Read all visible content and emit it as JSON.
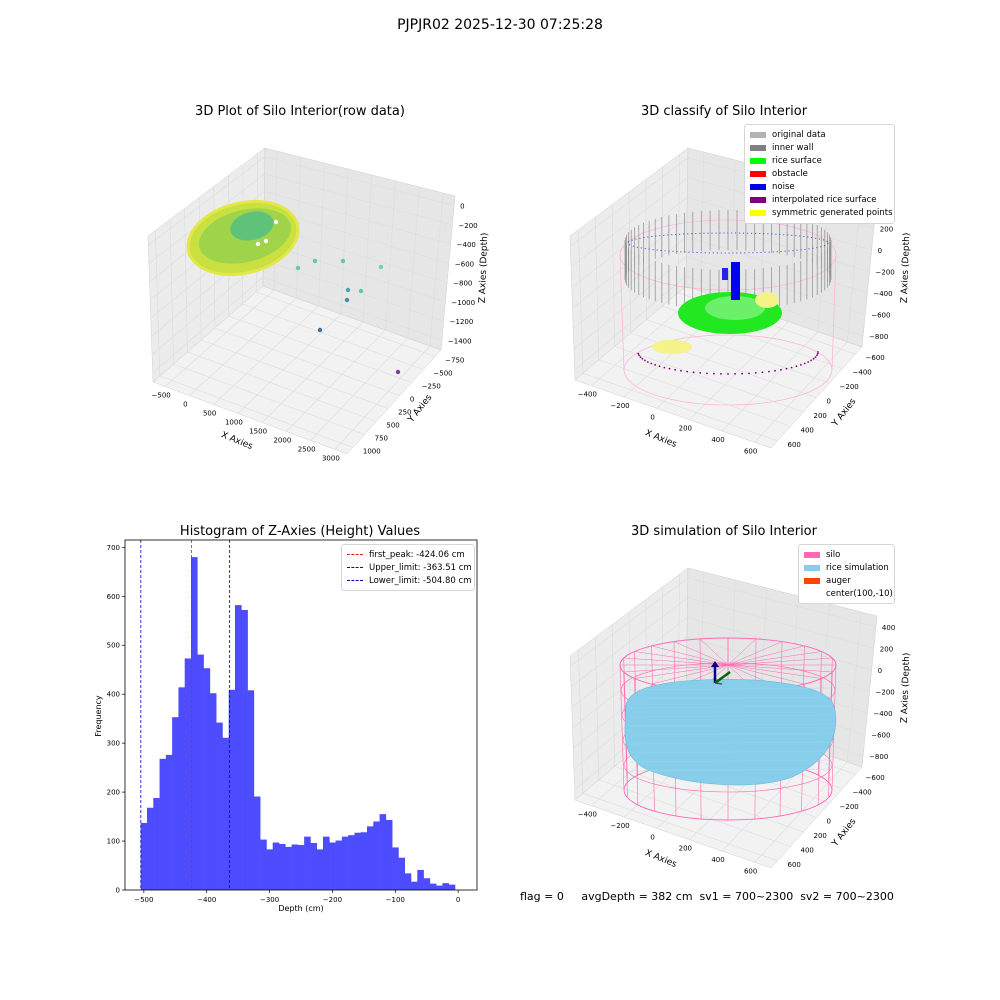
{
  "figure_title": "PJPJR02 2025-12-30 07:25:28",
  "colors": {
    "hist_bar": "#4d4dff",
    "first_peak": "#e41a1c",
    "limits": "#0000cc",
    "silo": "#ff69b4",
    "rice_simulation": "#87ceeb",
    "auger": "#ff4500",
    "pane": "#f2f2f2",
    "grid": "#dcdcdc"
  },
  "chart_data": [
    {
      "type": "scatter",
      "projection": "3d",
      "title": "3D Plot of Silo Interior(row data)",
      "xlabel": "X Axies",
      "ylabel": "Y Axies",
      "zlabel": "Z Axies (Depth)",
      "x_ticks": [
        "-500",
        "0",
        "500",
        "1000",
        "1500",
        "2000",
        "2500",
        "3000"
      ],
      "y_ticks": [
        "-750",
        "-500",
        "-250",
        "0",
        "250",
        "500",
        "750",
        "1000"
      ],
      "z_ticks": [
        "0",
        "-200",
        "-400",
        "-600",
        "-800",
        "-1000",
        "-1200",
        "-1400"
      ],
      "grid": true,
      "colormap": "viridis"
    },
    {
      "type": "scatter",
      "projection": "3d",
      "title": "3D classify of Silo Interior",
      "xlabel": "X Axies",
      "ylabel": "Y Axies",
      "zlabel": "Z Axies (Depth)",
      "x_ticks": [
        "-400",
        "-200",
        "0",
        "200",
        "400",
        "600"
      ],
      "y_ticks": [
        "-600",
        "-400",
        "-200",
        "0",
        "200",
        "400",
        "600"
      ],
      "z_ticks": [
        "400",
        "200",
        "0",
        "-200",
        "-400",
        "-600",
        "-800"
      ],
      "grid": true,
      "legend_position": "upper right",
      "legend": [
        {
          "label": "original data",
          "color": "#b3b3b3"
        },
        {
          "label": "inner wall",
          "color": "#808080"
        },
        {
          "label": "rice surface",
          "color": "#00ff00"
        },
        {
          "label": "obstacle",
          "color": "#ff0000"
        },
        {
          "label": "noise",
          "color": "#0000ee"
        },
        {
          "label": "interpolated rice surface",
          "color": "#800080"
        },
        {
          "label": "symmetric generated points",
          "color": "#ffff00"
        }
      ]
    },
    {
      "type": "bar",
      "title": "Histogram of Z-Axies (Height) Values",
      "xlabel": "Depth (cm)",
      "ylabel": "Frequency",
      "xlim": [
        -530,
        30
      ],
      "ylim": [
        0,
        715
      ],
      "x_ticks": [
        -500,
        -400,
        -300,
        -200,
        -100,
        0
      ],
      "y_ticks": [
        0,
        100,
        200,
        300,
        400,
        500,
        600,
        700
      ],
      "bin_start": -505,
      "bin_width": 10,
      "values": [
        137,
        168,
        188,
        268,
        276,
        353,
        414,
        473,
        680,
        481,
        453,
        402,
        342,
        311,
        409,
        582,
        572,
        408,
        191,
        103,
        83,
        97,
        94,
        88,
        93,
        92,
        109,
        96,
        83,
        109,
        97,
        101,
        109,
        112,
        117,
        118,
        130,
        140,
        155,
        143,
        87,
        66,
        34,
        17,
        41,
        24,
        13,
        9,
        14,
        11
      ],
      "vlines": [
        {
          "x": -424.06,
          "label": "first_peak: -424.06 cm",
          "style": "dashed",
          "color": "#e41a1c"
        },
        {
          "x": -363.51,
          "label": "Upper_limit: -363.51 cm",
          "style": "dashed",
          "color": "#0000cc"
        },
        {
          "x": -504.8,
          "label": "Lower_limit: -504.80 cm",
          "style": "dashed",
          "color": "#0000cc"
        }
      ],
      "legend_position": "upper right",
      "grid": false
    },
    {
      "type": "area",
      "projection": "3d",
      "title": "3D simulation of Silo Interior",
      "xlabel": "X Axies",
      "ylabel": "Y Axies",
      "zlabel": "Z Axies (Depth)",
      "x_ticks": [
        "-400",
        "-200",
        "0",
        "200",
        "400",
        "600"
      ],
      "y_ticks": [
        "-600",
        "-400",
        "-200",
        "0",
        "200",
        "400",
        "600"
      ],
      "z_ticks": [
        "400",
        "200",
        "0",
        "-200",
        "-400",
        "-600",
        "-800"
      ],
      "grid": true,
      "legend_position": "upper right",
      "legend": [
        {
          "label": "silo",
          "color": "#ff69b4"
        },
        {
          "label": "rice simulation",
          "color": "#87ceeb"
        },
        {
          "label": "auger",
          "color": "#ff4500"
        },
        {
          "label": "center(100,-10)",
          "color": ""
        }
      ]
    }
  ],
  "status": {
    "text": "flag = 0     avgDepth = 382 cm  sv1 = 700~2300  sv2 = 700~2300"
  }
}
